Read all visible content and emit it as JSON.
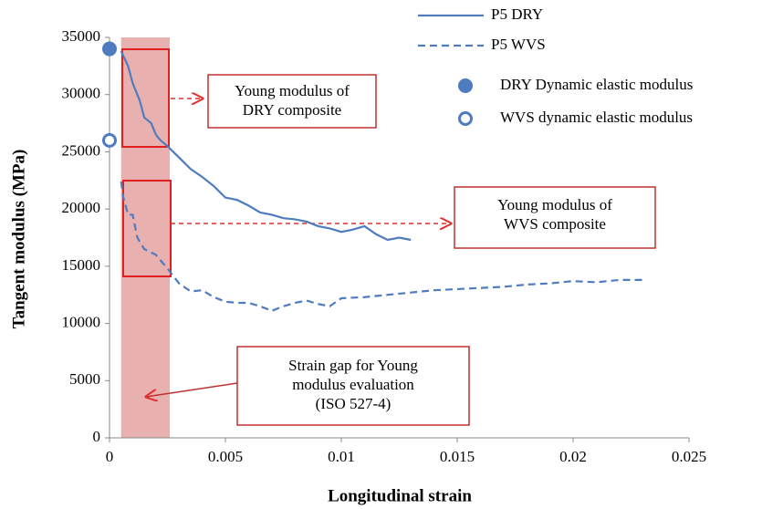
{
  "chart_data": {
    "type": "line",
    "xlabel": "Longitudinal strain",
    "ylabel": "Tangent modulus (MPa)",
    "xlim": [
      0,
      0.025
    ],
    "xticks": [
      0,
      0.005,
      0.01,
      0.015,
      0.02,
      0.025
    ],
    "ylim": [
      0,
      35000
    ],
    "yticks": [
      0,
      5000,
      10000,
      15000,
      20000,
      25000,
      30000,
      35000
    ],
    "series": [
      {
        "name": "P5 DRY",
        "color": "#4f7bbf",
        "style": "solid",
        "x": [
          0.0005,
          0.0008,
          0.001,
          0.0013,
          0.0015,
          0.0018,
          0.002,
          0.0022,
          0.0025,
          0.003,
          0.0035,
          0.004,
          0.0045,
          0.005,
          0.0055,
          0.006,
          0.0065,
          0.007,
          0.0075,
          0.008,
          0.0085,
          0.009,
          0.0095,
          0.01,
          0.0105,
          0.011,
          0.0115,
          0.012,
          0.0125,
          0.013
        ],
        "values": [
          33800,
          32500,
          31000,
          29500,
          28000,
          27500,
          26500,
          26000,
          25500,
          24500,
          23500,
          22800,
          22000,
          21000,
          20800,
          20300,
          19700,
          19500,
          19200,
          19100,
          18900,
          18500,
          18300,
          18000,
          18200,
          18500,
          17800,
          17300,
          17500,
          17300
        ]
      },
      {
        "name": "P5 WVS",
        "color": "#4f7bbf",
        "style": "dashed",
        "x": [
          0.0005,
          0.0006,
          0.0008,
          0.001,
          0.0012,
          0.0015,
          0.002,
          0.0025,
          0.003,
          0.0035,
          0.004,
          0.0045,
          0.005,
          0.0055,
          0.006,
          0.0065,
          0.007,
          0.0075,
          0.008,
          0.0085,
          0.009,
          0.0095,
          0.01,
          0.011,
          0.012,
          0.013,
          0.014,
          0.015,
          0.016,
          0.017,
          0.018,
          0.019,
          0.02,
          0.021,
          0.022,
          0.023
        ],
        "values": [
          22400,
          21000,
          19500,
          19500,
          17500,
          16500,
          16000,
          14800,
          13500,
          12800,
          12900,
          12300,
          11900,
          11800,
          11800,
          11500,
          11100,
          11500,
          11800,
          12000,
          11700,
          11500,
          12200,
          12300,
          12500,
          12700,
          12900,
          13000,
          13100,
          13200,
          13400,
          13500,
          13700,
          13600,
          13800,
          13800
        ]
      },
      {
        "name": "DRY Dynamic elastic modulus",
        "color": "#4f7bbf",
        "style": "filled",
        "x": [
          0
        ],
        "values": [
          34000
        ]
      },
      {
        "name": "WVS dynamic elastic modulus",
        "color": "#4f7bbf",
        "style": "hollow",
        "x": [
          0
        ],
        "values": [
          26000
        ]
      }
    ],
    "shaded_region": [
      0.0005,
      0.0026
    ],
    "annotations": [
      {
        "lines": [
          "Young modulus of",
          "DRY composite"
        ]
      },
      {
        "lines": [
          "Young modulus of",
          "WVS composite"
        ]
      },
      {
        "lines": [
          "Strain gap for Young",
          "modulus evaluation",
          "(ISO 527-4)"
        ]
      }
    ]
  }
}
